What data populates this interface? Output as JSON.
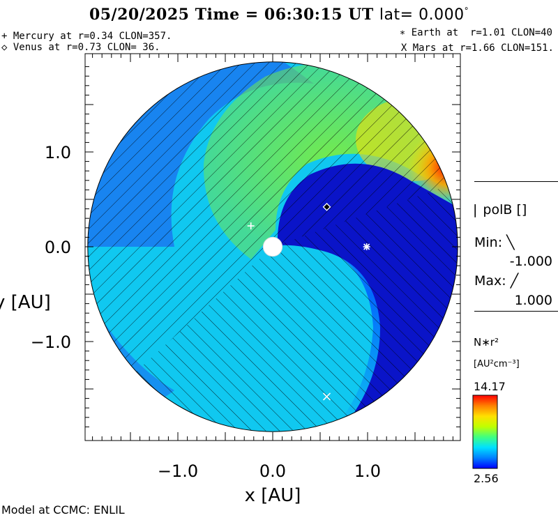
{
  "header": {
    "date": "05/20/2025",
    "time_label": "Time =",
    "time": "06:30:15",
    "time_unit": "UT",
    "lat_label": "lat=",
    "lat_value": "0.000",
    "lat_unit": "°"
  },
  "planets": {
    "mercury": "+ Mercury at r=0.34 CLON=357.",
    "venus": "◇ Venus at r=0.73 CLON= 36.",
    "earth": "∗ Earth at  r=1.01 CLON=40",
    "mars": "X Mars at r=1.66 CLON=151."
  },
  "polarity": {
    "label": "polB []",
    "min_label": "Min:",
    "min_value": "-1.000",
    "max_label": "Max:",
    "max_value": "1.000"
  },
  "colorbar": {
    "quantity": "N∗r²",
    "units": "[AU²cm⁻³]",
    "max": "14.17",
    "min": "2.56"
  },
  "footer": "Model at CCMC: ENLIL",
  "chart_data": {
    "type": "heatmap",
    "title": "05/20/2025 Time = 06:30:15 UT lat= 0.000°",
    "xlabel": "x [AU]",
    "ylabel": "y [AU]",
    "xlim": [
      -1.95,
      1.95
    ],
    "ylim": [
      -1.95,
      1.95
    ],
    "xticks": [
      -1.0,
      0.0,
      1.0
    ],
    "yticks": [
      -1.0,
      0.0,
      1.0
    ],
    "xtick_labels": [
      "−1.0",
      "0.0",
      "1.0"
    ],
    "ytick_labels": [
      "−1.0",
      "0.0",
      "1.0"
    ],
    "domain_radius_au": 1.95,
    "sun_radius_au": 0.1,
    "value_range": [
      2.56,
      14.17
    ],
    "colormap": [
      "#0000ff",
      "#0080ff",
      "#00e0ff",
      "#40ff80",
      "#c0ff00",
      "#ffe000",
      "#ff8000",
      "#ff0000"
    ],
    "markers": [
      {
        "name": "Mercury",
        "symbol": "+",
        "x": -0.23,
        "y": 0.22
      },
      {
        "name": "Venus",
        "symbol": "◇",
        "x": 0.57,
        "y": 0.42
      },
      {
        "name": "Earth",
        "symbol": "∗",
        "x": 0.99,
        "y": 0.0
      },
      {
        "name": "Mars",
        "symbol": "×",
        "x": 0.57,
        "y": -1.58
      }
    ]
  }
}
